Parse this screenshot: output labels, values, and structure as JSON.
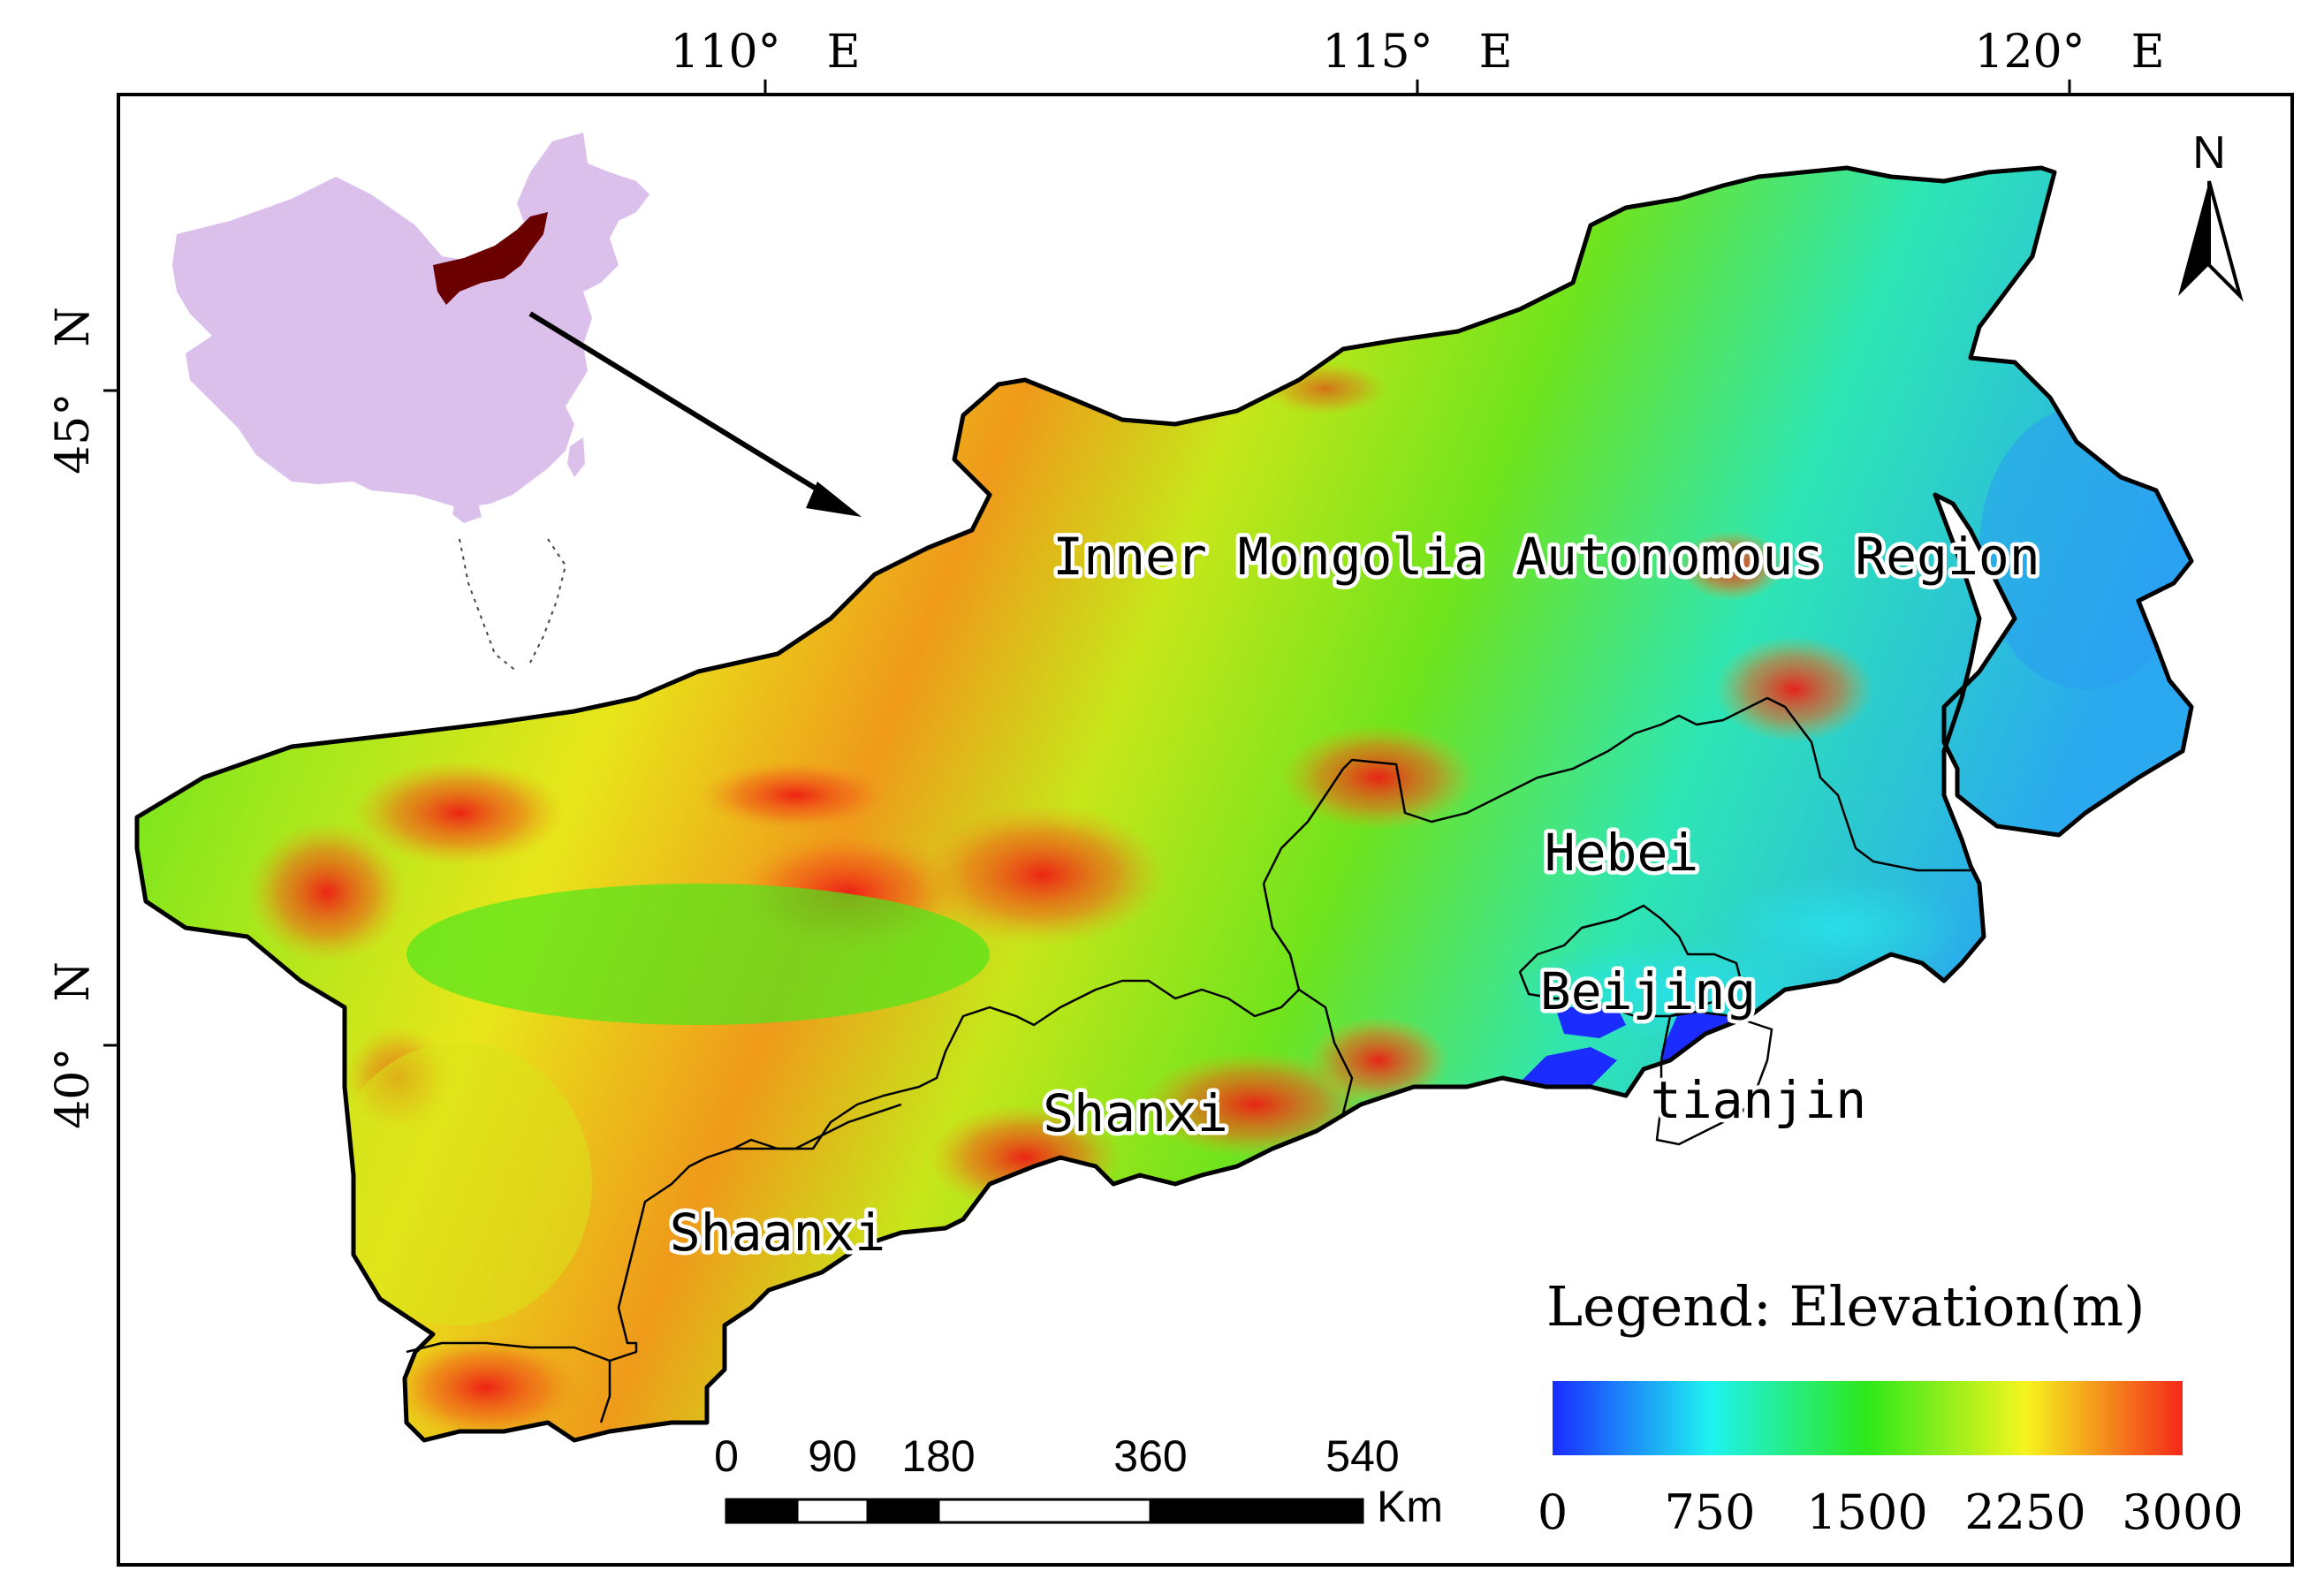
{
  "map": {
    "longitude_labels": [
      "110°　E",
      "115°　E",
      "120°　E"
    ],
    "latitude_labels": [
      "45°　N",
      "40°　N"
    ],
    "regions": [
      {
        "name": "Inner Mongolia Autonomous Region"
      },
      {
        "name": "Hebei"
      },
      {
        "name": "Beijing"
      },
      {
        "name": "tianjin"
      },
      {
        "name": "Shanxi"
      },
      {
        "name": "Shaanxi"
      }
    ],
    "north_arrow": "N",
    "scale_bar": {
      "ticks": [
        "0",
        "90",
        "180",
        "360",
        "540"
      ],
      "unit": "Km"
    },
    "legend": {
      "title": "Legend: Elevation(m)",
      "ticks": [
        "0",
        "750",
        "1500",
        "2250",
        "3000"
      ],
      "min": 0,
      "max": 3000,
      "colors": [
        "#1a2cff",
        "#1ef2f0",
        "#2ee81a",
        "#f5f51e",
        "#f5281a"
      ]
    },
    "inset": {
      "fill_color": "#dcc0ec",
      "highlight_color": "#6b0000"
    }
  }
}
